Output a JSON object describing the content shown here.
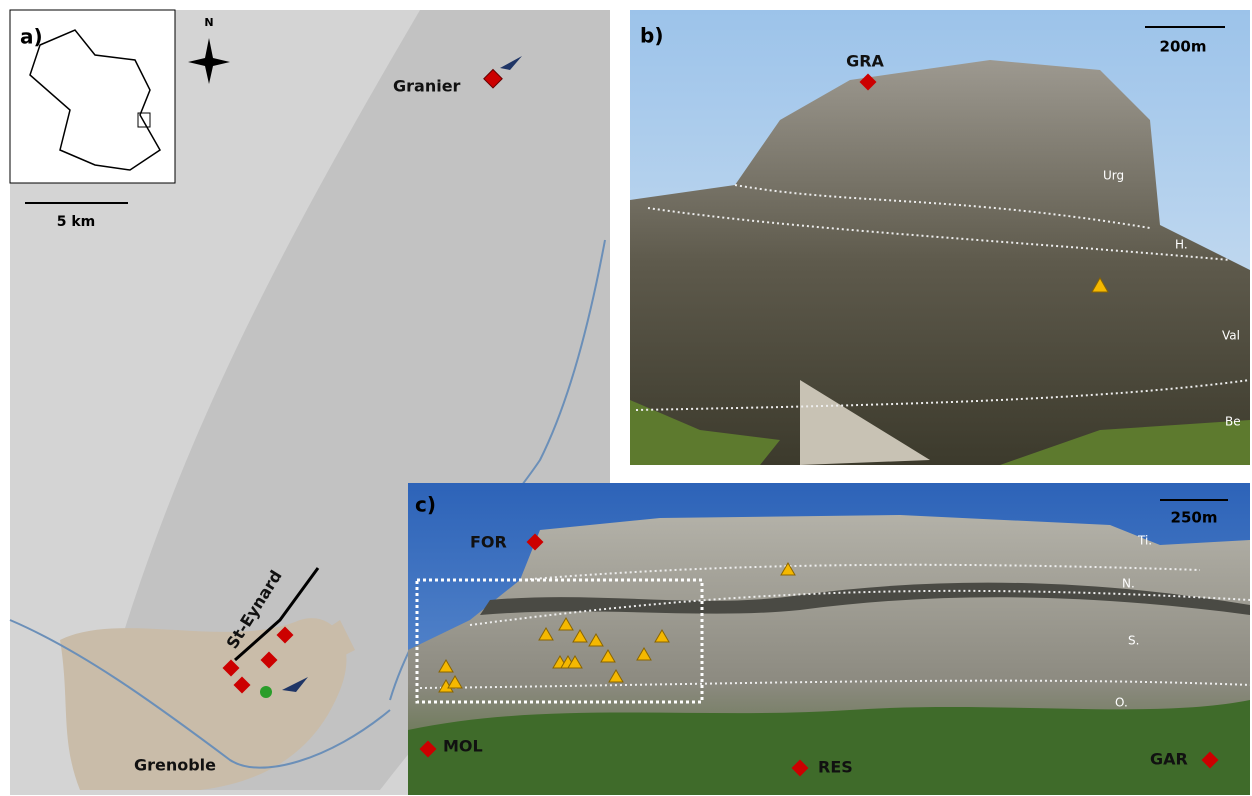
{
  "panels": {
    "a": {
      "label": "a)",
      "north": "N",
      "scale": "5 km",
      "sites": [
        "Granier",
        "St-Eynard"
      ],
      "city": "Grenoble"
    },
    "b": {
      "label": "b)",
      "site": "GRA",
      "scale": "200m",
      "units": [
        "Urg",
        "H.",
        "Val",
        "Be"
      ]
    },
    "c": {
      "label": "c)",
      "sites": [
        "FOR",
        "MOL",
        "RES",
        "GAR"
      ],
      "scale": "250m",
      "units": [
        "Ti.",
        "N.",
        "S.",
        "O."
      ]
    }
  }
}
